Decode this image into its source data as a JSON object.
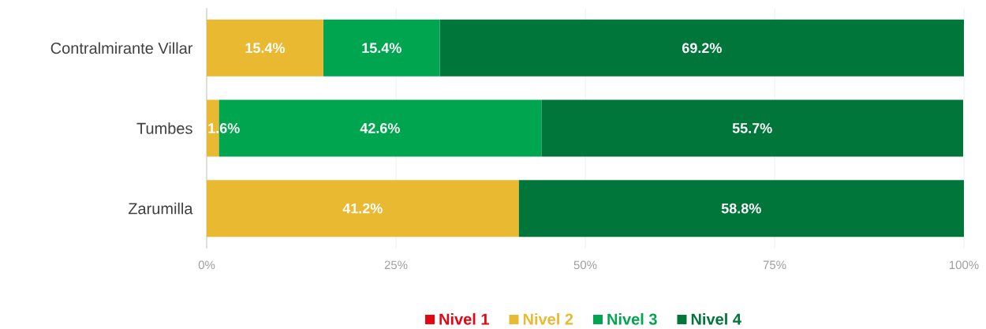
{
  "chart_data": {
    "type": "bar",
    "orientation": "horizontal",
    "stacked": true,
    "categories": [
      "Contralmirante Villar",
      "Tumbes",
      "Zarumilla"
    ],
    "series": [
      {
        "name": "Nivel 1",
        "color": "#e30613",
        "values": [
          0,
          0,
          0
        ],
        "value_labels": [
          null,
          null,
          null
        ]
      },
      {
        "name": "Nivel 2",
        "color": "#e8b931",
        "values": [
          15.4,
          1.6,
          41.2
        ],
        "value_labels": [
          "15.4%",
          "1.6%",
          "41.2%"
        ]
      },
      {
        "name": "Nivel 3",
        "color": "#00a54f",
        "values": [
          15.4,
          42.6,
          0
        ],
        "value_labels": [
          "15.4%",
          "42.6%",
          null
        ]
      },
      {
        "name": "Nivel 4",
        "color": "#00763a",
        "values": [
          69.2,
          55.7,
          58.8
        ],
        "value_labels": [
          "69.2%",
          "55.7%",
          "58.8%"
        ]
      }
    ],
    "xlim": [
      0,
      100
    ],
    "xticks": [
      {
        "value": 0,
        "label": "0%"
      },
      {
        "value": 25,
        "label": "25%"
      },
      {
        "value": 50,
        "label": "50%"
      },
      {
        "value": 75,
        "label": "75%"
      },
      {
        "value": 100,
        "label": "100%"
      }
    ],
    "grid": "x",
    "legend": "bottom"
  }
}
